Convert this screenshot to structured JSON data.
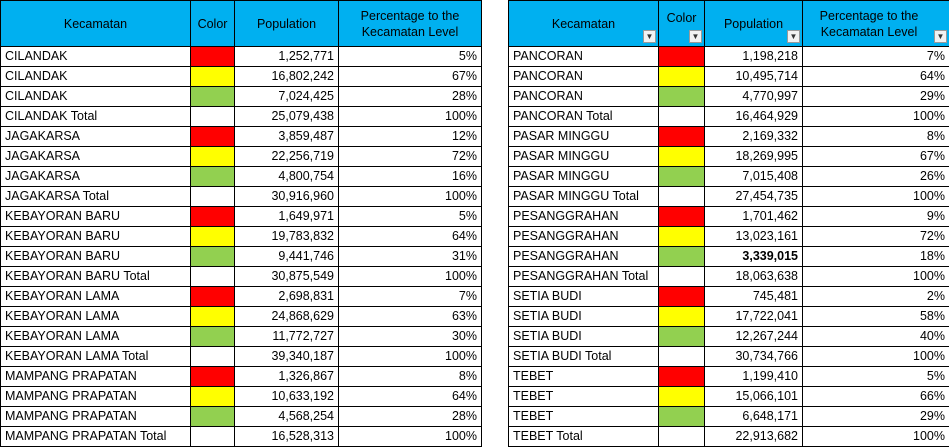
{
  "colors": {
    "red": "#ff0000",
    "yellow": "#ffff00",
    "green": "#92d050",
    "white": "#ffffff",
    "header": "#00b0f0"
  },
  "headers": {
    "kecamatan": "Kecamatan",
    "color": "Color",
    "population": "Population",
    "percentage": "Percentage to the Kecamatan Level",
    "filter_icon": "chevron-down-icon"
  },
  "left": [
    {
      "name": "CILANDAK",
      "color": "red",
      "population": "1,252,771",
      "pct": "5%"
    },
    {
      "name": "CILANDAK",
      "color": "yellow",
      "population": "16,802,242",
      "pct": "67%"
    },
    {
      "name": "CILANDAK",
      "color": "green",
      "population": "7,024,425",
      "pct": "28%"
    },
    {
      "name": "CILANDAK Total",
      "color": "white",
      "population": "25,079,438",
      "pct": "100%"
    },
    {
      "name": "JAGAKARSA",
      "color": "red",
      "population": "3,859,487",
      "pct": "12%"
    },
    {
      "name": "JAGAKARSA",
      "color": "yellow",
      "population": "22,256,719",
      "pct": "72%"
    },
    {
      "name": "JAGAKARSA",
      "color": "green",
      "population": "4,800,754",
      "pct": "16%"
    },
    {
      "name": "JAGAKARSA Total",
      "color": "white",
      "population": "30,916,960",
      "pct": "100%"
    },
    {
      "name": "KEBAYORAN BARU",
      "color": "red",
      "population": "1,649,971",
      "pct": "5%"
    },
    {
      "name": "KEBAYORAN BARU",
      "color": "yellow",
      "population": "19,783,832",
      "pct": "64%"
    },
    {
      "name": "KEBAYORAN BARU",
      "color": "green",
      "population": "9,441,746",
      "pct": "31%"
    },
    {
      "name": "KEBAYORAN BARU Total",
      "color": "white",
      "population": "30,875,549",
      "pct": "100%"
    },
    {
      "name": "KEBAYORAN LAMA",
      "color": "red",
      "population": "2,698,831",
      "pct": "7%"
    },
    {
      "name": "KEBAYORAN LAMA",
      "color": "yellow",
      "population": "24,868,629",
      "pct": "63%"
    },
    {
      "name": "KEBAYORAN LAMA",
      "color": "green",
      "population": "11,772,727",
      "pct": "30%"
    },
    {
      "name": "KEBAYORAN LAMA Total",
      "color": "white",
      "population": "39,340,187",
      "pct": "100%"
    },
    {
      "name": "MAMPANG PRAPATAN",
      "color": "red",
      "population": "1,326,867",
      "pct": "8%"
    },
    {
      "name": "MAMPANG PRAPATAN",
      "color": "yellow",
      "population": "10,633,192",
      "pct": "64%"
    },
    {
      "name": "MAMPANG PRAPATAN",
      "color": "green",
      "population": "4,568,254",
      "pct": "28%"
    },
    {
      "name": "MAMPANG PRAPATAN Total",
      "color": "white",
      "population": "16,528,313",
      "pct": "100%"
    }
  ],
  "right": [
    {
      "name": "PANCORAN",
      "color": "red",
      "population": "1,198,218",
      "pct": "7%"
    },
    {
      "name": "PANCORAN",
      "color": "yellow",
      "population": "10,495,714",
      "pct": "64%"
    },
    {
      "name": "PANCORAN",
      "color": "green",
      "population": "4,770,997",
      "pct": "29%"
    },
    {
      "name": "PANCORAN Total",
      "color": "white",
      "population": "16,464,929",
      "pct": "100%"
    },
    {
      "name": "PASAR MINGGU",
      "color": "red",
      "population": "2,169,332",
      "pct": "8%"
    },
    {
      "name": "PASAR MINGGU",
      "color": "yellow",
      "population": "18,269,995",
      "pct": "67%"
    },
    {
      "name": "PASAR MINGGU",
      "color": "green",
      "population": "7,015,408",
      "pct": "26%"
    },
    {
      "name": "PASAR MINGGU Total",
      "color": "white",
      "population": "27,454,735",
      "pct": "100%"
    },
    {
      "name": "PESANGGRAHAN",
      "color": "red",
      "population": "1,701,462",
      "pct": "9%"
    },
    {
      "name": "PESANGGRAHAN",
      "color": "yellow",
      "population": "13,023,161",
      "pct": "72%"
    },
    {
      "name": "PESANGGRAHAN",
      "color": "green",
      "population": "3,339,015",
      "pct": "18%",
      "bold": true
    },
    {
      "name": "PESANGGRAHAN Total",
      "color": "white",
      "population": "18,063,638",
      "pct": "100%"
    },
    {
      "name": "SETIA BUDI",
      "color": "red",
      "population": "745,481",
      "pct": "2%"
    },
    {
      "name": "SETIA BUDI",
      "color": "yellow",
      "population": "17,722,041",
      "pct": "58%"
    },
    {
      "name": "SETIA BUDI",
      "color": "green",
      "population": "12,267,244",
      "pct": "40%"
    },
    {
      "name": "SETIA BUDI Total",
      "color": "white",
      "population": "30,734,766",
      "pct": "100%"
    },
    {
      "name": "TEBET",
      "color": "red",
      "population": "1,199,410",
      "pct": "5%"
    },
    {
      "name": "TEBET",
      "color": "yellow",
      "population": "15,066,101",
      "pct": "66%"
    },
    {
      "name": "TEBET",
      "color": "green",
      "population": "6,648,171",
      "pct": "29%"
    },
    {
      "name": "TEBET Total",
      "color": "white",
      "population": "22,913,682",
      "pct": "100%"
    }
  ]
}
